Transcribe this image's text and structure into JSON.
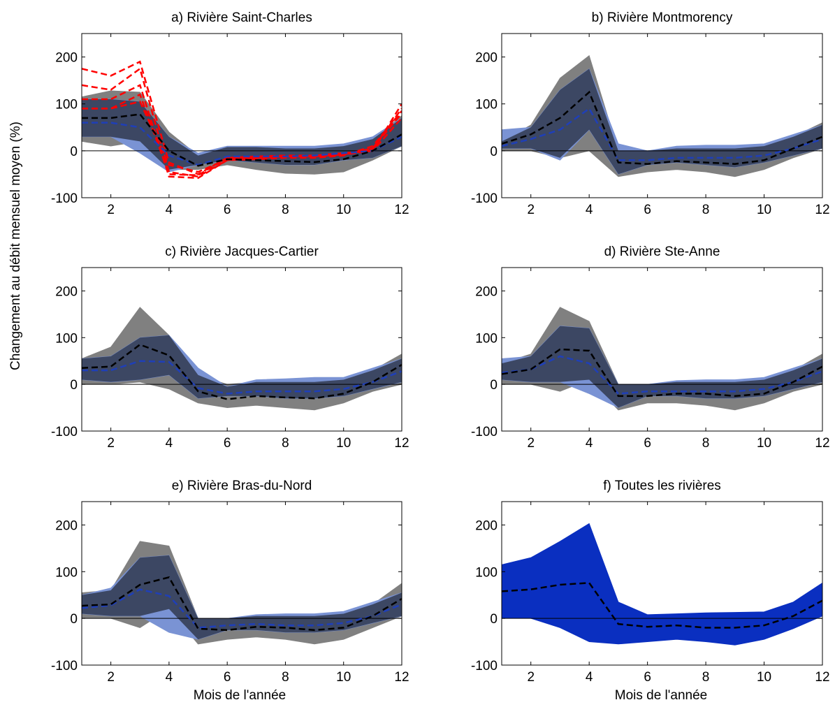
{
  "figure": {
    "ylabel": "Changement au débit mensuel moyen (%)",
    "xlabel": "Mois de l'année"
  },
  "colors": {
    "gray_band": "#808080",
    "blue_band": "#7a93d4",
    "overlap_band": "#3c4763",
    "blue_line": "#1f3fb8",
    "black_line": "#000000",
    "red_line": "#ff0000",
    "all_band": "#0a2fc0"
  },
  "chart_data": [
    {
      "type": "area",
      "title": "a) Rivière Saint-Charles",
      "x": [
        1,
        2,
        3,
        4,
        5,
        6,
        7,
        8,
        9,
        10,
        11,
        12
      ],
      "xticks": [
        2,
        4,
        6,
        8,
        10,
        12
      ],
      "yticks": [
        -100,
        0,
        100,
        200
      ],
      "xlim": [
        1,
        12
      ],
      "ylim": [
        -100,
        250
      ],
      "bands": [
        {
          "name": "gray",
          "upper": [
            115,
            128,
            125,
            40,
            -10,
            8,
            8,
            5,
            5,
            10,
            25,
            75
          ],
          "lower": [
            20,
            10,
            20,
            -40,
            -40,
            -30,
            -40,
            -48,
            -50,
            -45,
            -20,
            10
          ]
        },
        {
          "name": "blue",
          "upper": [
            110,
            110,
            105,
            30,
            -5,
            10,
            10,
            10,
            10,
            15,
            30,
            70
          ],
          "lower": [
            30,
            30,
            -5,
            -45,
            -30,
            -20,
            -25,
            -30,
            -30,
            -20,
            -15,
            10
          ]
        }
      ],
      "series": [
        {
          "kind": "black",
          "values": [
            70,
            70,
            78,
            0,
            -32,
            -18,
            -20,
            -22,
            -24,
            -18,
            0,
            35
          ]
        },
        {
          "kind": "blue",
          "values": [
            60,
            60,
            50,
            -10,
            -30,
            -12,
            -12,
            -12,
            -10,
            -5,
            0,
            30
          ]
        }
      ],
      "red_series": [
        [
          175,
          160,
          190,
          -25,
          -50,
          -15,
          -12,
          -10,
          -10,
          -5,
          0,
          100
        ],
        [
          140,
          130,
          175,
          -45,
          -55,
          -20,
          -15,
          -12,
          -12,
          -8,
          5,
          90
        ],
        [
          110,
          110,
          140,
          -55,
          -58,
          -20,
          -18,
          -15,
          -15,
          -10,
          10,
          85
        ],
        [
          90,
          90,
          120,
          -50,
          -52,
          -15,
          -15,
          -12,
          -12,
          -8,
          5,
          80
        ],
        [
          90,
          90,
          105,
          -30,
          -45,
          -18,
          -12,
          -12,
          -12,
          -8,
          0,
          70
        ]
      ]
    },
    {
      "type": "area",
      "title": "b)  Rivière Montmorency",
      "x": [
        1,
        2,
        3,
        4,
        5,
        6,
        7,
        8,
        9,
        10,
        11,
        12
      ],
      "xticks": [
        2,
        4,
        6,
        8,
        10,
        12
      ],
      "yticks": [
        -100,
        0,
        100,
        200
      ],
      "xlim": [
        1,
        12
      ],
      "ylim": [
        -100,
        250
      ],
      "bands": [
        {
          "name": "gray",
          "upper": [
            20,
            55,
            155,
            203,
            0,
            0,
            5,
            5,
            5,
            10,
            30,
            60
          ],
          "lower": [
            0,
            0,
            -15,
            0,
            -55,
            -45,
            -40,
            -45,
            -55,
            -40,
            -15,
            5
          ]
        },
        {
          "name": "blue",
          "upper": [
            45,
            50,
            130,
            175,
            15,
            0,
            10,
            12,
            12,
            15,
            35,
            55
          ],
          "lower": [
            5,
            5,
            -20,
            45,
            -50,
            -30,
            -25,
            -30,
            -35,
            -25,
            -10,
            5
          ]
        }
      ],
      "series": [
        {
          "kind": "black",
          "values": [
            15,
            35,
            70,
            125,
            -25,
            -28,
            -22,
            -25,
            -28,
            -20,
            5,
            30
          ]
        },
        {
          "kind": "blue",
          "values": [
            10,
            25,
            45,
            90,
            -20,
            -20,
            -15,
            -15,
            -15,
            -10,
            5,
            25
          ]
        }
      ],
      "red_series": []
    },
    {
      "type": "area",
      "title": "c)  Rivière Jacques-Cartier",
      "x": [
        1,
        2,
        3,
        4,
        5,
        6,
        7,
        8,
        9,
        10,
        11,
        12
      ],
      "xticks": [
        2,
        4,
        6,
        8,
        10,
        12
      ],
      "yticks": [
        -100,
        0,
        100,
        200
      ],
      "xlim": [
        1,
        12
      ],
      "ylim": [
        -100,
        250
      ],
      "bands": [
        {
          "name": "gray",
          "upper": [
            55,
            80,
            165,
            105,
            20,
            0,
            5,
            5,
            5,
            10,
            30,
            65
          ],
          "lower": [
            0,
            0,
            5,
            -10,
            -40,
            -50,
            -45,
            -50,
            -55,
            -40,
            -15,
            0
          ]
        },
        {
          "name": "blue",
          "upper": [
            55,
            60,
            100,
            105,
            35,
            -5,
            10,
            12,
            15,
            15,
            35,
            55
          ],
          "lower": [
            10,
            5,
            10,
            20,
            -30,
            -25,
            -25,
            -30,
            -30,
            -25,
            -10,
            5
          ]
        }
      ],
      "series": [
        {
          "kind": "black",
          "values": [
            35,
            38,
            85,
            62,
            -15,
            -32,
            -25,
            -28,
            -30,
            -20,
            5,
            42
          ]
        },
        {
          "kind": "blue",
          "values": [
            30,
            30,
            50,
            48,
            -8,
            -20,
            -15,
            -15,
            -15,
            -10,
            5,
            28
          ]
        }
      ],
      "red_series": []
    },
    {
      "type": "area",
      "title": "d)  Rivière Ste-Anne",
      "x": [
        1,
        2,
        3,
        4,
        5,
        6,
        7,
        8,
        9,
        10,
        11,
        12
      ],
      "xticks": [
        2,
        4,
        6,
        8,
        10,
        12
      ],
      "yticks": [
        -100,
        0,
        100,
        200
      ],
      "xlim": [
        1,
        12
      ],
      "ylim": [
        -100,
        250
      ],
      "bands": [
        {
          "name": "gray",
          "upper": [
            45,
            65,
            165,
            135,
            0,
            0,
            5,
            5,
            5,
            10,
            30,
            65
          ],
          "lower": [
            0,
            0,
            -15,
            10,
            -55,
            -40,
            -40,
            -45,
            -55,
            -40,
            -15,
            0
          ]
        },
        {
          "name": "blue",
          "upper": [
            55,
            60,
            125,
            120,
            0,
            0,
            8,
            10,
            10,
            15,
            35,
            55
          ],
          "lower": [
            10,
            5,
            5,
            -20,
            -50,
            -25,
            -25,
            -30,
            -30,
            -25,
            -10,
            5
          ]
        }
      ],
      "series": [
        {
          "kind": "black",
          "values": [
            22,
            32,
            75,
            72,
            -25,
            -25,
            -20,
            -20,
            -25,
            -20,
            5,
            38
          ]
        },
        {
          "kind": "blue",
          "values": [
            25,
            32,
            60,
            45,
            -20,
            -15,
            -15,
            -15,
            -15,
            -10,
            5,
            28
          ]
        }
      ],
      "red_series": []
    },
    {
      "type": "area",
      "title": "e)  Rivière Bras-du-Nord",
      "x": [
        1,
        2,
        3,
        4,
        5,
        6,
        7,
        8,
        9,
        10,
        11,
        12
      ],
      "xticks": [
        2,
        4,
        6,
        8,
        10,
        12
      ],
      "yticks": [
        -100,
        0,
        100,
        200
      ],
      "xlim": [
        1,
        12
      ],
      "ylim": [
        -100,
        250
      ],
      "bands": [
        {
          "name": "gray",
          "upper": [
            55,
            60,
            165,
            155,
            0,
            0,
            5,
            5,
            5,
            10,
            30,
            75
          ],
          "lower": [
            0,
            0,
            -20,
            20,
            -55,
            -45,
            -40,
            -45,
            -55,
            -45,
            -20,
            5
          ]
        },
        {
          "name": "blue",
          "upper": [
            50,
            65,
            130,
            135,
            0,
            0,
            8,
            10,
            10,
            15,
            35,
            55
          ],
          "lower": [
            10,
            5,
            5,
            -30,
            -45,
            -25,
            -25,
            -30,
            -30,
            -25,
            -10,
            5
          ]
        }
      ],
      "series": [
        {
          "kind": "black",
          "values": [
            27,
            30,
            72,
            88,
            -22,
            -25,
            -18,
            -20,
            -25,
            -20,
            5,
            42
          ]
        },
        {
          "kind": "blue",
          "values": [
            22,
            28,
            62,
            48,
            -20,
            -15,
            -12,
            -15,
            -15,
            -10,
            5,
            30
          ]
        }
      ],
      "red_series": []
    },
    {
      "type": "area",
      "title": "f)  Toutes les rivières",
      "x": [
        1,
        2,
        3,
        4,
        5,
        6,
        7,
        8,
        9,
        10,
        11,
        12
      ],
      "xticks": [
        2,
        4,
        6,
        8,
        10,
        12
      ],
      "yticks": [
        -100,
        0,
        100,
        200
      ],
      "xlim": [
        1,
        12
      ],
      "ylim": [
        -100,
        250
      ],
      "bands": [
        {
          "name": "all",
          "upper": [
            115,
            130,
            165,
            203,
            35,
            8,
            10,
            12,
            13,
            14,
            35,
            76
          ],
          "lower": [
            0,
            0,
            -20,
            -50,
            -55,
            -50,
            -45,
            -50,
            -57,
            -45,
            -22,
            5
          ]
        }
      ],
      "series": [
        {
          "kind": "black",
          "values": [
            58,
            62,
            72,
            76,
            -12,
            -18,
            -15,
            -20,
            -20,
            -15,
            5,
            38
          ]
        }
      ],
      "red_series": []
    }
  ]
}
